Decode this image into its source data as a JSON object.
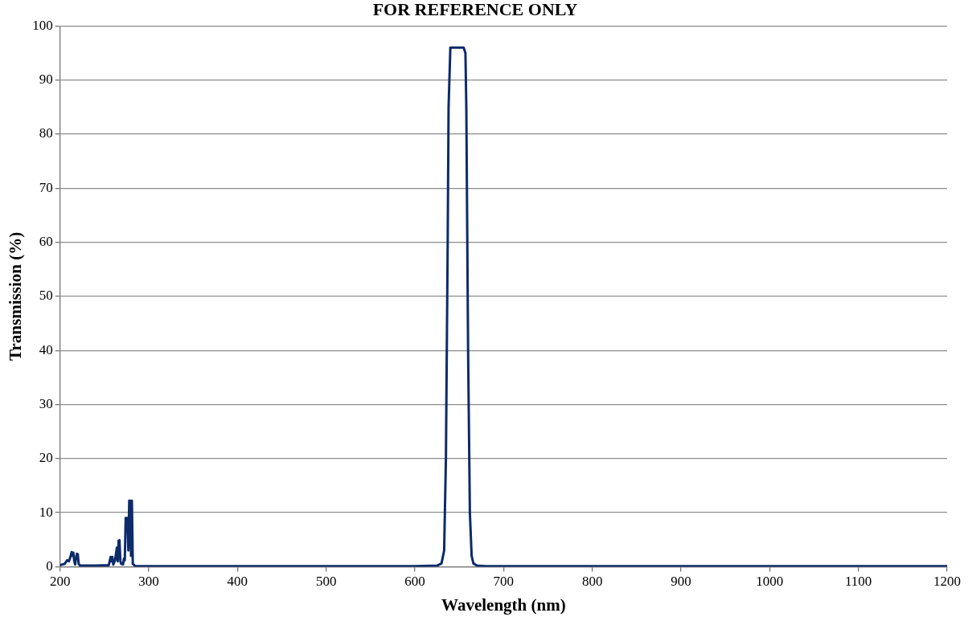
{
  "chart_data": {
    "type": "line",
    "title": "FOR REFERENCE ONLY",
    "xlabel": "Wavelength (nm)",
    "ylabel": "Transmission (%)",
    "series": [
      {
        "color": "#0d2a6b",
        "x": [
          200,
          205,
          208,
          210,
          212,
          213,
          214,
          215,
          216,
          217,
          218,
          219,
          220,
          221,
          222,
          223,
          224,
          226,
          240,
          255,
          257,
          258,
          259,
          260,
          262,
          264,
          265,
          266,
          267,
          268,
          269,
          270,
          271,
          272,
          273,
          274,
          275,
          276,
          277,
          278,
          279,
          280,
          281,
          282,
          283,
          284,
          285,
          286,
          300,
          400,
          500,
          600,
          625,
          630,
          633,
          635,
          637,
          638,
          640,
          645,
          650,
          655,
          657,
          658,
          660,
          662,
          664,
          666,
          670,
          680,
          700,
          800,
          900,
          1000,
          1100,
          1200
        ],
        "values": [
          0.3,
          0.5,
          1.2,
          1.0,
          2.0,
          2.7,
          2.0,
          2.6,
          1.0,
          0.4,
          1.5,
          2.4,
          2.3,
          0.5,
          0.3,
          0.2,
          0.2,
          0.2,
          0.2,
          0.3,
          1.8,
          1.0,
          1.8,
          0.4,
          1.2,
          3.5,
          1.0,
          4.8,
          4.9,
          1.0,
          0.5,
          0.6,
          0.4,
          1.5,
          1.2,
          9.0,
          9.0,
          9.0,
          3.0,
          12.2,
          12.2,
          2.0,
          12.2,
          0.5,
          0.4,
          0.2,
          0.1,
          0.1,
          0.1,
          0.1,
          0.1,
          0.1,
          0.2,
          0.6,
          3.0,
          20,
          60,
          85,
          96,
          96,
          96,
          96,
          95,
          85,
          40,
          10,
          2,
          0.6,
          0.2,
          0.1,
          0.1,
          0.1,
          0.1,
          0.1,
          0.1,
          0.1
        ]
      }
    ],
    "xlim": [
      200,
      1200
    ],
    "xticks": [
      200,
      300,
      400,
      500,
      600,
      700,
      800,
      900,
      1000,
      1100,
      1200
    ],
    "ylim": [
      0,
      100
    ],
    "yticks": [
      0,
      10,
      20,
      30,
      40,
      50,
      60,
      70,
      80,
      90,
      100
    ],
    "grid": "y",
    "marker": "none",
    "line_style": "solid",
    "legend": false
  }
}
